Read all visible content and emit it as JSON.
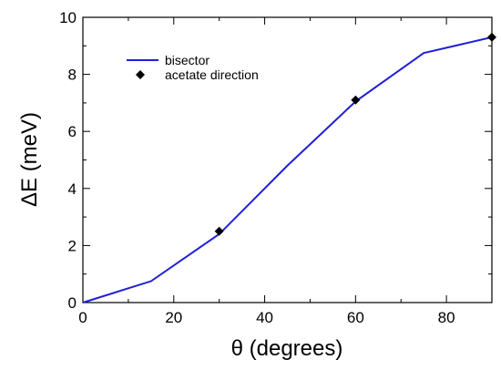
{
  "chart_data": {
    "type": "line",
    "title": "",
    "xlabel": "θ (degrees)",
    "ylabel": "ΔE (meV)",
    "xlim": [
      0,
      90
    ],
    "ylim": [
      0,
      10
    ],
    "xticks": [
      0,
      20,
      40,
      60,
      80
    ],
    "yticks": [
      0,
      2,
      4,
      6,
      8,
      10
    ],
    "grid": false,
    "legend_position": "top-left",
    "series": [
      {
        "name": "bisector",
        "kind": "line",
        "color": "#1f1fd6",
        "x": [
          0,
          15,
          30,
          45,
          60,
          75,
          90
        ],
        "y": [
          0,
          0.75,
          2.4,
          4.8,
          7.05,
          8.75,
          9.3
        ]
      },
      {
        "name": "acetate direction",
        "kind": "scatter",
        "marker": "diamond",
        "color": "#000000",
        "x": [
          30,
          60,
          90
        ],
        "y": [
          2.5,
          7.1,
          9.3
        ]
      }
    ]
  }
}
